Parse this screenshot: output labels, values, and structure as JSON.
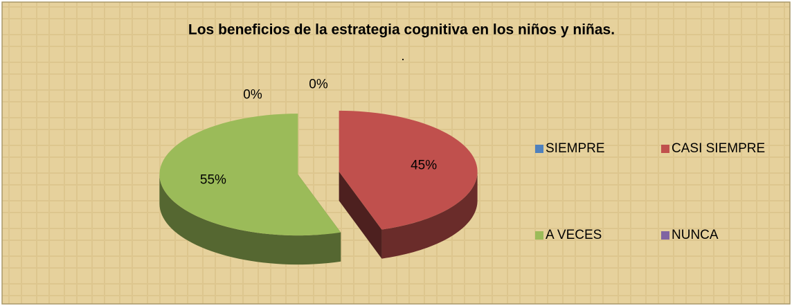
{
  "chart_data": {
    "type": "pie",
    "title": "Los beneficios de la estrategia cognitiva en los niños y niñas.",
    "subtitle": ".",
    "categories": [
      "SIEMPRE",
      "CASI SIEMPRE",
      "A VECES",
      "NUNCA"
    ],
    "values": [
      0,
      45,
      55,
      0
    ],
    "value_labels": [
      "0%",
      "45%",
      "55%",
      "0%"
    ],
    "colors": [
      "#4f81bd",
      "#c0504d",
      "#9bbb59",
      "#8064a2"
    ],
    "legend": "right"
  }
}
